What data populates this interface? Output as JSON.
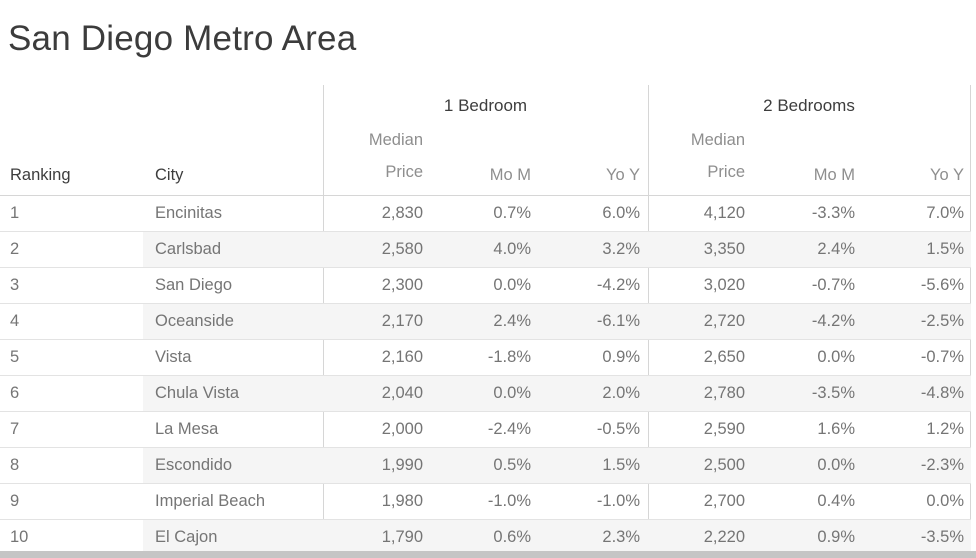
{
  "title": "San Diego Metro Area",
  "table": {
    "group_1br": "1 Bedroom",
    "group_2br": "2 Bedrooms",
    "col_ranking": "Ranking",
    "col_city": "City",
    "col_median_line1": "Median",
    "col_median_line2": "Price",
    "col_mom": "Mo M",
    "col_yoy": "Yo Y",
    "rows": [
      {
        "ranking": "1",
        "city": "Encinitas",
        "p1": "2,830",
        "m1": "0.7%",
        "y1": "6.0%",
        "p2": "4,120",
        "m2": "-3.3%",
        "y2": "7.0%"
      },
      {
        "ranking": "2",
        "city": "Carlsbad",
        "p1": "2,580",
        "m1": "4.0%",
        "y1": "3.2%",
        "p2": "3,350",
        "m2": "2.4%",
        "y2": "1.5%"
      },
      {
        "ranking": "3",
        "city": "San Diego",
        "p1": "2,300",
        "m1": "0.0%",
        "y1": "-4.2%",
        "p2": "3,020",
        "m2": "-0.7%",
        "y2": "-5.6%"
      },
      {
        "ranking": "4",
        "city": "Oceanside",
        "p1": "2,170",
        "m1": "2.4%",
        "y1": "-6.1%",
        "p2": "2,720",
        "m2": "-4.2%",
        "y2": "-2.5%"
      },
      {
        "ranking": "5",
        "city": "Vista",
        "p1": "2,160",
        "m1": "-1.8%",
        "y1": "0.9%",
        "p2": "2,650",
        "m2": "0.0%",
        "y2": "-0.7%"
      },
      {
        "ranking": "6",
        "city": "Chula Vista",
        "p1": "2,040",
        "m1": "0.0%",
        "y1": "2.0%",
        "p2": "2,780",
        "m2": "-3.5%",
        "y2": "-4.8%"
      },
      {
        "ranking": "7",
        "city": "La Mesa",
        "p1": "2,000",
        "m1": "-2.4%",
        "y1": "-0.5%",
        "p2": "2,590",
        "m2": "1.6%",
        "y2": "1.2%"
      },
      {
        "ranking": "8",
        "city": "Escondido",
        "p1": "1,990",
        "m1": "0.5%",
        "y1": "1.5%",
        "p2": "2,500",
        "m2": "0.0%",
        "y2": "-2.3%"
      },
      {
        "ranking": "9",
        "city": "Imperial Beach",
        "p1": "1,980",
        "m1": "-1.0%",
        "y1": "-1.0%",
        "p2": "2,700",
        "m2": "0.4%",
        "y2": "0.0%"
      },
      {
        "ranking": "10",
        "city": "El Cajon",
        "p1": "1,790",
        "m1": "0.6%",
        "y1": "2.3%",
        "p2": "2,220",
        "m2": "0.9%",
        "y2": "-3.5%"
      }
    ]
  },
  "chart_data": {
    "type": "table",
    "title": "San Diego Metro Area",
    "column_groups": [
      "1 Bedroom",
      "2 Bedrooms"
    ],
    "columns": [
      "Ranking",
      "City",
      "1BR Median Price",
      "1BR Mo M %",
      "1BR Yo Y %",
      "2BR Median Price",
      "2BR Mo M %",
      "2BR Yo Y %"
    ],
    "rows": [
      [
        1,
        "Encinitas",
        2830,
        0.7,
        6.0,
        4120,
        -3.3,
        7.0
      ],
      [
        2,
        "Carlsbad",
        2580,
        4.0,
        3.2,
        3350,
        2.4,
        1.5
      ],
      [
        3,
        "San Diego",
        2300,
        0.0,
        -4.2,
        3020,
        -0.7,
        -5.6
      ],
      [
        4,
        "Oceanside",
        2170,
        2.4,
        -6.1,
        2720,
        -4.2,
        -2.5
      ],
      [
        5,
        "Vista",
        2160,
        -1.8,
        0.9,
        2650,
        0.0,
        -0.7
      ],
      [
        6,
        "Chula Vista",
        2040,
        0.0,
        2.0,
        2780,
        -3.5,
        -4.8
      ],
      [
        7,
        "La Mesa",
        2000,
        -2.4,
        -0.5,
        2590,
        1.6,
        1.2
      ],
      [
        8,
        "Escondido",
        1990,
        0.5,
        1.5,
        2500,
        0.0,
        -2.3
      ],
      [
        9,
        "Imperial Beach",
        1980,
        -1.0,
        -1.0,
        2700,
        0.4,
        0.0
      ],
      [
        10,
        "El Cajon",
        1790,
        0.6,
        2.3,
        2220,
        0.9,
        -3.5
      ]
    ],
    "layout": {
      "row_banding": true,
      "banding_applies_to": "City and data columns",
      "grid": true
    }
  },
  "colors": {
    "title_text": "#3c3c3c",
    "header_dark_text": "#3d3d3d",
    "header_light_text": "#8e8e8e",
    "data_text": "#757575",
    "row_band": "#f5f5f5",
    "row_gridline": "#e3e3e3",
    "pane_divider": "#d6d6d6",
    "scrollbar": "#c5c5c5"
  }
}
